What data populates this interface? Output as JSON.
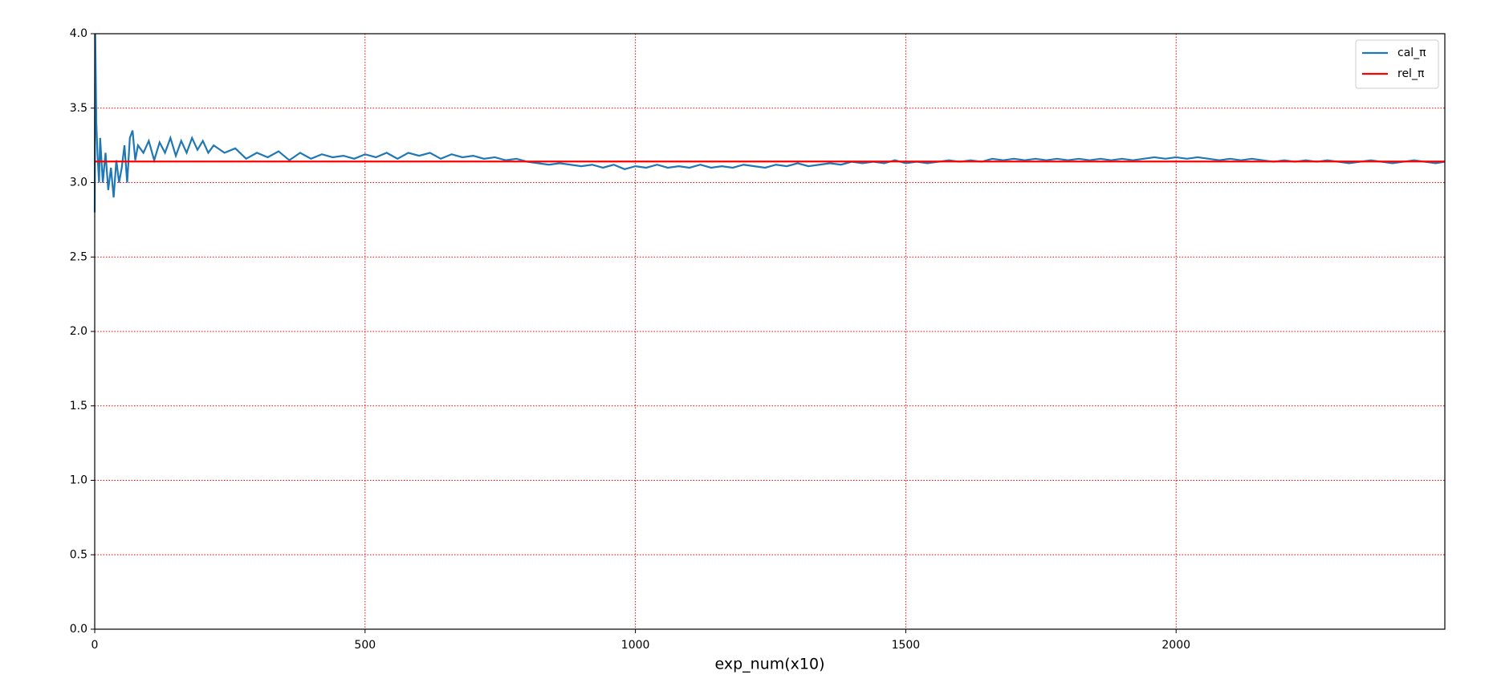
{
  "chart_data": {
    "type": "line",
    "x_label": "exp_num(x10)",
    "xlim": [
      0,
      2497
    ],
    "ylim": [
      0,
      4
    ],
    "xticks": [
      0,
      500,
      1000,
      1500,
      2000
    ],
    "yticks": [
      {
        "value": 0,
        "label": "0.0"
      },
      {
        "value": 0.5,
        "label": "0.5"
      },
      {
        "value": 1,
        "label": "1.0"
      },
      {
        "value": 1.5,
        "label": "1.5"
      },
      {
        "value": 2,
        "label": "2.0"
      },
      {
        "value": 2.5,
        "label": "2.5"
      },
      {
        "value": 3,
        "label": "3.0"
      },
      {
        "value": 3.5,
        "label": "3.5"
      },
      {
        "value": 4,
        "label": "4.0"
      }
    ],
    "grid": true,
    "grid_color": "#ff0000",
    "legend": "upper right",
    "series": [
      {
        "name": "cal_π",
        "color": "#1f77b4",
        "x": [
          0,
          1,
          2,
          3,
          5,
          8,
          10,
          15,
          20,
          25,
          30,
          35,
          40,
          45,
          50,
          55,
          60,
          65,
          70,
          75,
          80,
          90,
          100,
          110,
          120,
          130,
          140,
          150,
          160,
          170,
          180,
          190,
          200,
          210,
          220,
          240,
          260,
          280,
          300,
          320,
          340,
          360,
          380,
          400,
          420,
          440,
          460,
          480,
          500,
          520,
          540,
          560,
          580,
          600,
          620,
          640,
          660,
          680,
          700,
          720,
          740,
          760,
          780,
          800,
          820,
          840,
          860,
          880,
          900,
          920,
          940,
          960,
          980,
          1000,
          1020,
          1040,
          1060,
          1080,
          1100,
          1120,
          1140,
          1160,
          1180,
          1200,
          1220,
          1240,
          1260,
          1280,
          1300,
          1320,
          1340,
          1360,
          1380,
          1400,
          1420,
          1440,
          1460,
          1480,
          1500,
          1520,
          1540,
          1560,
          1580,
          1600,
          1620,
          1640,
          1660,
          1680,
          1700,
          1720,
          1740,
          1760,
          1780,
          1800,
          1820,
          1840,
          1860,
          1880,
          1900,
          1920,
          1940,
          1960,
          1980,
          2000,
          2020,
          2040,
          2060,
          2080,
          2100,
          2120,
          2140,
          2160,
          2180,
          2200,
          2220,
          2240,
          2260,
          2280,
          2300,
          2320,
          2340,
          2360,
          2380,
          2400,
          2420,
          2440,
          2460,
          2480,
          2497
        ],
        "values": [
          2.8,
          4.0,
          3.7,
          3.4,
          3.2,
          3.0,
          3.3,
          3.0,
          3.2,
          2.95,
          3.1,
          2.9,
          3.15,
          3.0,
          3.1,
          3.25,
          3.0,
          3.3,
          3.35,
          3.15,
          3.25,
          3.2,
          3.28,
          3.15,
          3.27,
          3.2,
          3.3,
          3.18,
          3.28,
          3.2,
          3.3,
          3.22,
          3.28,
          3.2,
          3.25,
          3.2,
          3.23,
          3.16,
          3.2,
          3.17,
          3.21,
          3.15,
          3.2,
          3.16,
          3.19,
          3.17,
          3.18,
          3.16,
          3.19,
          3.17,
          3.2,
          3.16,
          3.2,
          3.18,
          3.2,
          3.16,
          3.19,
          3.17,
          3.18,
          3.16,
          3.17,
          3.15,
          3.16,
          3.14,
          3.13,
          3.12,
          3.13,
          3.12,
          3.11,
          3.12,
          3.1,
          3.12,
          3.09,
          3.11,
          3.1,
          3.12,
          3.1,
          3.11,
          3.1,
          3.12,
          3.1,
          3.11,
          3.1,
          3.12,
          3.11,
          3.1,
          3.12,
          3.11,
          3.13,
          3.11,
          3.12,
          3.13,
          3.12,
          3.14,
          3.13,
          3.14,
          3.13,
          3.15,
          3.13,
          3.14,
          3.13,
          3.14,
          3.15,
          3.14,
          3.15,
          3.14,
          3.16,
          3.15,
          3.16,
          3.15,
          3.16,
          3.15,
          3.16,
          3.15,
          3.16,
          3.15,
          3.16,
          3.15,
          3.16,
          3.15,
          3.16,
          3.17,
          3.16,
          3.17,
          3.16,
          3.17,
          3.16,
          3.15,
          3.16,
          3.15,
          3.16,
          3.15,
          3.14,
          3.15,
          3.14,
          3.15,
          3.14,
          3.15,
          3.14,
          3.13,
          3.14,
          3.15,
          3.14,
          3.13,
          3.14,
          3.15,
          3.14,
          3.13,
          3.14
        ]
      },
      {
        "name": "rel_π",
        "color": "#ff0000",
        "x": [
          0,
          2497
        ],
        "values": [
          3.14159,
          3.14159
        ]
      }
    ]
  }
}
